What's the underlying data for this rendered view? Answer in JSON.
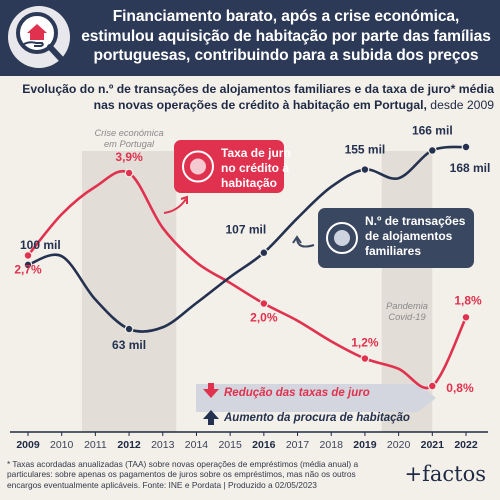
{
  "header": {
    "title": "Financiamento barato, após a crise económica, estimulou aquisição de habitação por parte das famílias portuguesas, contribuindo para a subida dos preços",
    "icon": "house-in-hand-magnifier-icon"
  },
  "subtitle": {
    "bold": "Evolução do n.º de transações de alojamentos familiares e da taxa de juro* média nas novas operações de crédito à habitação em Portugal,",
    "rest": " desde 2009"
  },
  "chart_data": {
    "type": "line",
    "x": [
      2009,
      2010,
      2011,
      2012,
      2013,
      2014,
      2015,
      2016,
      2017,
      2018,
      2019,
      2020,
      2021,
      2022
    ],
    "xlim": [
      2009,
      2022
    ],
    "series": [
      {
        "name": "Taxa de juro no crédito à habitação",
        "color": "#e0314e",
        "unit": "%",
        "values": [
          2.7,
          3.3,
          3.7,
          3.9,
          3.1,
          2.6,
          2.3,
          2.0,
          1.75,
          1.45,
          1.2,
          1.05,
          0.8,
          1.8
        ],
        "labels": [
          "2,7%",
          null,
          null,
          "3,9%",
          null,
          null,
          null,
          "2,0%",
          null,
          null,
          "1,2%",
          null,
          "0,8%",
          "1,8%"
        ]
      },
      {
        "name": "N.º de transações de alojamentos familiares",
        "color": "#24314f",
        "unit": "mil",
        "values": [
          100,
          105,
          80,
          63,
          64,
          78,
          93,
          107,
          127,
          145,
          155,
          150,
          166,
          168
        ],
        "labels": [
          "100 mil",
          null,
          null,
          "63 mil",
          null,
          null,
          null,
          "107 mil",
          null,
          null,
          "155 mil",
          null,
          "166 mil",
          "168 mil"
        ]
      }
    ],
    "shaded_periods": [
      {
        "label": "Crise económica em Portugal",
        "from": 2010.6,
        "to": 2013.4
      },
      {
        "label": "Pandemia Covid-19",
        "from": 2019.5,
        "to": 2021.0
      }
    ],
    "annotations": {
      "rate_box": "Taxa de juro no crédito à habitação",
      "transactions_box": "N.º de transações de alojamentos familiares",
      "rate_reduction": "Redução das taxas de juro",
      "demand_increase": "Aumento da procura de habitação"
    },
    "colors": {
      "rate": "#e0314e",
      "transactions": "#24314f",
      "shade": "#e2ddd7"
    }
  },
  "footnote": "* Taxas acordadas anualizadas (TAA) sobre novas operações de empréstimos (média anual) a particulares: sobre apenas os pagamentos de juros sobre os empréstimos, mas não os outros encargos eventualmente aplicáveis. Fonte: INE e Pordata | Produzido a 02/05/2023",
  "brand": "+factos"
}
